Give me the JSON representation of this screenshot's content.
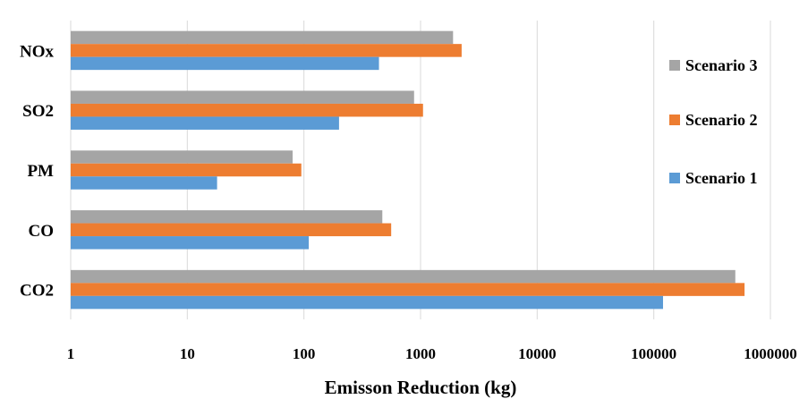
{
  "chart_data": {
    "type": "bar",
    "orientation": "horizontal",
    "categories": [
      "NOx",
      "SO2",
      "PM",
      "CO",
      "CO2"
    ],
    "series": [
      {
        "name": "Scenario 3",
        "color": "#a5a5a5",
        "values": [
          1900,
          880,
          80,
          470,
          500000
        ]
      },
      {
        "name": "Scenario 2",
        "color": "#ed7d31",
        "values": [
          2250,
          1050,
          95,
          560,
          600000
        ]
      },
      {
        "name": "Scenario 1",
        "color": "#5b9bd5",
        "values": [
          440,
          200,
          18,
          110,
          120000
        ]
      }
    ],
    "xlabel": "Emisson Reduction (kg)",
    "ylabel": "",
    "xscale": "log",
    "xlim": [
      1,
      1000000
    ],
    "xticks": [
      "1",
      "10",
      "100",
      "1000",
      "10000",
      "100000",
      "1000000"
    ],
    "grid": "vertical",
    "legend": "right"
  }
}
